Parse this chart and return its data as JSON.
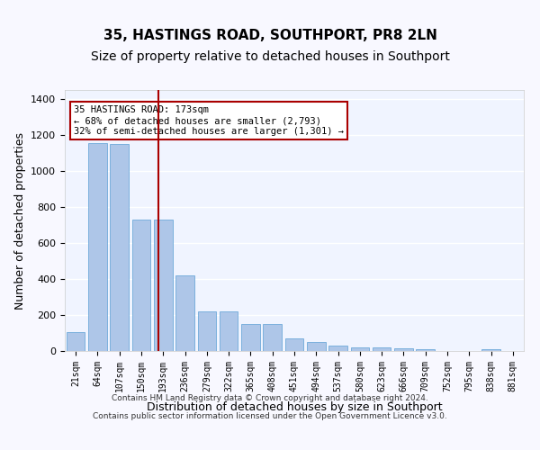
{
  "title": "35, HASTINGS ROAD, SOUTHPORT, PR8 2LN",
  "subtitle": "Size of property relative to detached houses in Southport",
  "xlabel": "Distribution of detached houses by size in Southport",
  "ylabel": "Number of detached properties",
  "categories": [
    "21sqm",
    "64sqm",
    "107sqm",
    "150sqm",
    "193sqm",
    "236sqm",
    "279sqm",
    "322sqm",
    "365sqm",
    "408sqm",
    "451sqm",
    "494sqm",
    "537sqm",
    "580sqm",
    "623sqm",
    "666sqm",
    "709sqm",
    "752sqm",
    "795sqm",
    "838sqm",
    "881sqm"
  ],
  "values": [
    105,
    1155,
    1150,
    730,
    730,
    418,
    220,
    220,
    150,
    150,
    68,
    52,
    32,
    22,
    18,
    15,
    12,
    0,
    0,
    12,
    0
  ],
  "bar_color": "#aec6e8",
  "bar_edgecolor": "#5a9fd4",
  "vline_x": 4,
  "vline_color": "#aa0000",
  "annotation_text": "35 HASTINGS ROAD: 173sqm\n← 68% of detached houses are smaller (2,793)\n32% of semi-detached houses are larger (1,301) →",
  "annotation_box_color": "#aa0000",
  "ylim": [
    0,
    1450
  ],
  "yticks": [
    0,
    200,
    400,
    600,
    800,
    1000,
    1200,
    1400
  ],
  "footer_line1": "Contains HM Land Registry data © Crown copyright and database right 2024.",
  "footer_line2": "Contains public sector information licensed under the Open Government Licence v3.0.",
  "bg_color": "#f0f4ff",
  "grid_color": "#ffffff",
  "title_fontsize": 11,
  "subtitle_fontsize": 10,
  "axis_fontsize": 9
}
